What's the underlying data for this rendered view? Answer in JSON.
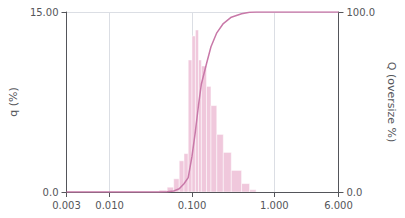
{
  "chart_data": {
    "type": "histogram",
    "ylabel": "q (%)",
    "y2label": "Q (oversize %)",
    "log": "x",
    "grid": true,
    "xlim": [
      0.003,
      6.0
    ],
    "xticks": [
      0.003,
      {
        "value": 0.01,
        "label": "0.010"
      },
      {
        "value": 0.1,
        "label": "0.100"
      },
      {
        "value": 1,
        "label": "1.000"
      },
      {
        "value": 6,
        "label": "6.000"
      }
    ],
    "ylim": [
      0,
      15
    ],
    "yticks": [
      {
        "value": 0,
        "label": "0.0"
      },
      {
        "value": 15,
        "label": "15.00"
      }
    ],
    "y2lim": [
      0,
      100
    ],
    "y2ticks": [
      {
        "value": 0,
        "label": "0.0"
      },
      {
        "value": 100,
        "label": "100.0"
      }
    ],
    "series": [
      {
        "type": "histogram",
        "color": "#f0c8dc",
        "bins": [
          0.04,
          0.05,
          0.06,
          0.07,
          0.08,
          0.09,
          0.1,
          0.11,
          0.12,
          0.13,
          0.15,
          0.17,
          0.2,
          0.24,
          0.3,
          0.4,
          0.5,
          0.6
        ],
        "values": [
          0.15,
          0.4,
          1.1,
          2.6,
          3.2,
          11.0,
          13.0,
          13.5,
          11.0,
          10.5,
          8.8,
          7.2,
          4.8,
          3.3,
          1.8,
          0.7,
          0.18
        ]
      },
      {
        "type": "line",
        "color": "#c878a8",
        "axis": "y2",
        "x": [
          0.003,
          0.04,
          0.05,
          0.06,
          0.07,
          0.08,
          0.09,
          0.1,
          0.11,
          0.12,
          0.13,
          0.15,
          0.17,
          0.2,
          0.24,
          0.3,
          0.4,
          0.5,
          0.6,
          6.0
        ],
        "values": [
          0,
          0,
          0.1609,
          0.5899,
          1.7698,
          4.5586,
          7.991,
          19.7898,
          33.7338,
          48.2141,
          60.0129,
          71.2753,
          80.7144,
          88.4372,
          93.5858,
          97.1254,
          99.0561,
          99.8069,
          100,
          100
        ]
      }
    ]
  }
}
